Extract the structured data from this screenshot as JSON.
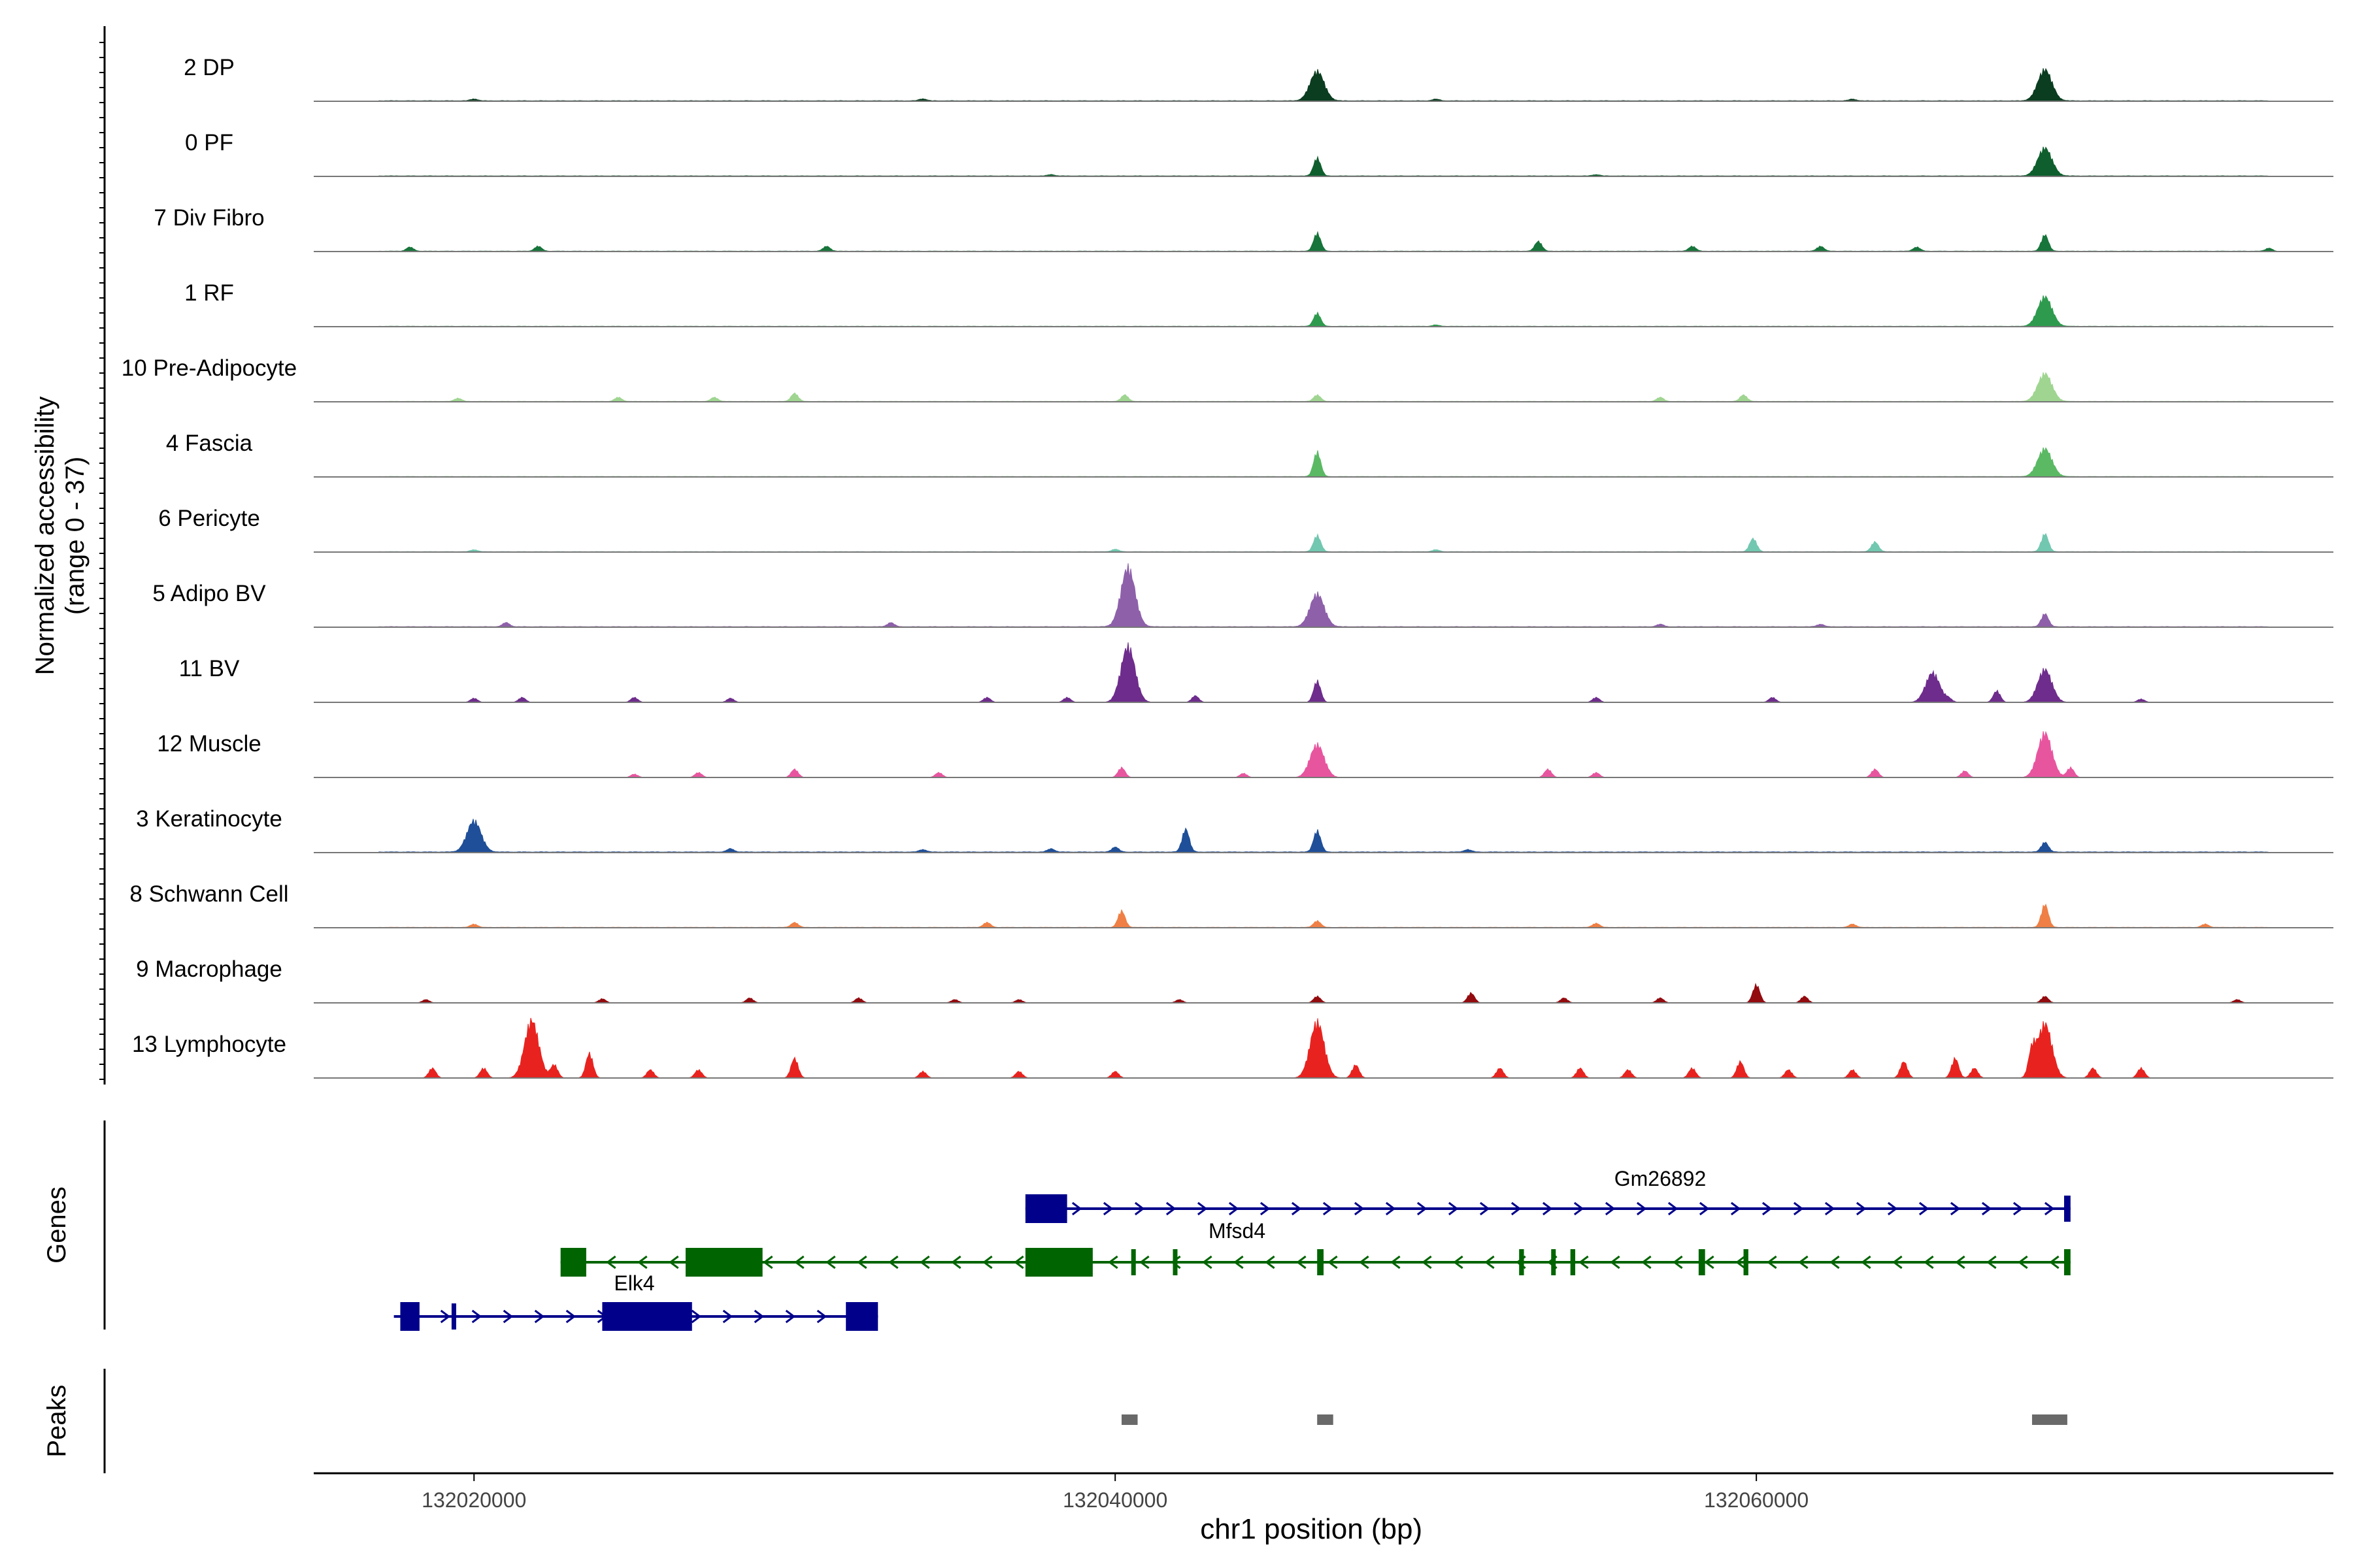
{
  "chart_data": {
    "type": "area",
    "y_axis_label_line1": "Normalized accessibility",
    "y_axis_label_line2": "(range 0 - 37)",
    "ylim": [
      0,
      37
    ],
    "x_axis_label": "chr1 position (bp)",
    "xlim": [
      132015000,
      132078000
    ],
    "x_ticks": [
      {
        "value": 132020000,
        "label": "132020000"
      },
      {
        "value": 132040000,
        "label": "132040000"
      },
      {
        "value": 132060000,
        "label": "132060000"
      }
    ],
    "tracks": [
      {
        "name": "2 DP",
        "color": "#0b3d20",
        "baseline": 0.4,
        "peaks": [
          [
            132046300,
            18
          ],
          [
            132069000,
            19
          ],
          [
            132034000,
            1.2
          ],
          [
            132050000,
            1.0
          ],
          [
            132020000,
            1.1
          ],
          [
            132063000,
            1.0
          ]
        ]
      },
      {
        "name": "0 PF",
        "color": "#0e5f2d",
        "baseline": 0.4,
        "peaks": [
          [
            132046300,
            11
          ],
          [
            132069000,
            17
          ],
          [
            132038000,
            0.8
          ],
          [
            132055000,
            0.8
          ]
        ]
      },
      {
        "name": "7 Div Fibro",
        "color": "#17743a",
        "baseline": 0.3,
        "peaks": [
          [
            132046300,
            11
          ],
          [
            132069000,
            10
          ],
          [
            132053200,
            6
          ],
          [
            132022000,
            3
          ],
          [
            132018000,
            2.5
          ],
          [
            132031000,
            3
          ],
          [
            132058000,
            3
          ],
          [
            132062000,
            3
          ],
          [
            132065000,
            2.5
          ],
          [
            132076000,
            2
          ]
        ]
      },
      {
        "name": "1 RF",
        "color": "#2e9a4e",
        "baseline": 0.3,
        "peaks": [
          [
            132046300,
            8
          ],
          [
            132069000,
            18
          ],
          [
            132050000,
            0.8
          ]
        ]
      },
      {
        "name": "10 Pre-Adipocyte",
        "color": "#9fd591",
        "baseline": 0.3,
        "peaks": [
          [
            132069000,
            17
          ],
          [
            132040300,
            4
          ],
          [
            132046300,
            4
          ],
          [
            132030000,
            5
          ],
          [
            132059600,
            4
          ],
          [
            132024500,
            2.5
          ],
          [
            132027500,
            2.5
          ],
          [
            132019500,
            2
          ],
          [
            132057000,
            2.5
          ],
          [
            132077000,
            2
          ]
        ]
      },
      {
        "name": "4 Fascia",
        "color": "#5bb964",
        "baseline": 0.3,
        "peaks": [
          [
            132046300,
            15
          ],
          [
            132069000,
            17
          ]
        ]
      },
      {
        "name": "6 Pericyte",
        "color": "#72c7b0",
        "baseline": 0.3,
        "peaks": [
          [
            132046300,
            10
          ],
          [
            132069000,
            11
          ],
          [
            132059900,
            8
          ],
          [
            132063700,
            6
          ],
          [
            132040000,
            1.5
          ],
          [
            132050000,
            1.2
          ],
          [
            132020000,
            1.2
          ]
        ]
      },
      {
        "name": "5 Adipo BV",
        "color": "#8e60aa",
        "baseline": 0.4,
        "peaks": [
          [
            132040400,
            36
          ],
          [
            132046300,
            20
          ],
          [
            132069000,
            8
          ],
          [
            132033000,
            2.5
          ],
          [
            132021000,
            2.5
          ],
          [
            132062000,
            1.5
          ],
          [
            132057000,
            1.5
          ]
        ]
      },
      {
        "name": "11 BV",
        "color": "#6e2c8c",
        "baseline": 0,
        "peaks": [
          [
            132040400,
            34
          ],
          [
            132046300,
            13
          ],
          [
            132065500,
            18
          ],
          [
            132069000,
            20
          ],
          [
            132067500,
            7
          ],
          [
            132042500,
            4
          ],
          [
            132038500,
            3
          ],
          [
            132036000,
            3
          ],
          [
            132025000,
            3
          ],
          [
            132021500,
            3
          ],
          [
            132020000,
            2.5
          ],
          [
            132028000,
            2.5
          ],
          [
            132055000,
            3
          ],
          [
            132060500,
            3
          ],
          [
            132066000,
            2
          ],
          [
            132072000,
            2
          ]
        ]
      },
      {
        "name": "12 Muscle",
        "color": "#e8559f",
        "baseline": 0,
        "peaks": [
          [
            132046300,
            20
          ],
          [
            132069000,
            27
          ],
          [
            132040200,
            6
          ],
          [
            132030000,
            5
          ],
          [
            132027000,
            3
          ],
          [
            132025000,
            2
          ],
          [
            132034500,
            3
          ],
          [
            132044000,
            2.5
          ],
          [
            132053500,
            5
          ],
          [
            132055000,
            3
          ],
          [
            132063700,
            5
          ],
          [
            132066500,
            4
          ],
          [
            132069800,
            6
          ]
        ]
      },
      {
        "name": "3 Keratinocyte",
        "color": "#1f4f98",
        "baseline": 0.5,
        "peaks": [
          [
            132020000,
            19
          ],
          [
            132042200,
            14
          ],
          [
            132046300,
            13
          ],
          [
            132069000,
            6
          ],
          [
            132040000,
            3
          ],
          [
            132038000,
            2
          ],
          [
            132028000,
            2
          ],
          [
            132051000,
            1.5
          ],
          [
            132034000,
            1.5
          ]
        ]
      },
      {
        "name": "8 Schwann Cell",
        "color": "#ef7f45",
        "baseline": 0.3,
        "peaks": [
          [
            132040200,
            10
          ],
          [
            132046300,
            4
          ],
          [
            132069000,
            14
          ],
          [
            132036000,
            3
          ],
          [
            132030000,
            3
          ],
          [
            132055000,
            2.5
          ],
          [
            132020000,
            2
          ],
          [
            132063000,
            2
          ],
          [
            132074000,
            2
          ]
        ]
      },
      {
        "name": "9 Macrophage",
        "color": "#930b0f",
        "baseline": 0,
        "peaks": [
          [
            132060000,
            11
          ],
          [
            132051100,
            6
          ],
          [
            132046300,
            4
          ],
          [
            132032000,
            3
          ],
          [
            132028600,
            3
          ],
          [
            132054000,
            3
          ],
          [
            132057000,
            3
          ],
          [
            132061500,
            4
          ],
          [
            132069000,
            4
          ],
          [
            132037000,
            2
          ],
          [
            132024000,
            2.5
          ],
          [
            132018500,
            2
          ],
          [
            132035000,
            2
          ],
          [
            132042000,
            2
          ],
          [
            132075000,
            2
          ]
        ]
      },
      {
        "name": "13 Lymphocyte",
        "color": "#e8231f",
        "baseline": 0,
        "peaks": [
          [
            132021800,
            35
          ],
          [
            132023600,
            15
          ],
          [
            132022500,
            8
          ],
          [
            132046300,
            34
          ],
          [
            132047500,
            8
          ],
          [
            132069000,
            33
          ],
          [
            132068600,
            15
          ],
          [
            132070500,
            6
          ],
          [
            132030000,
            12
          ],
          [
            132066200,
            12
          ],
          [
            132059500,
            10
          ],
          [
            132064600,
            10
          ],
          [
            132018700,
            6
          ],
          [
            132020300,
            6
          ],
          [
            132025500,
            5
          ],
          [
            132027000,
            5
          ],
          [
            132034000,
            4
          ],
          [
            132037000,
            4
          ],
          [
            132040000,
            4
          ],
          [
            132052000,
            6
          ],
          [
            132054500,
            6
          ],
          [
            132056000,
            5
          ],
          [
            132058000,
            6
          ],
          [
            132061000,
            5
          ],
          [
            132063000,
            5
          ],
          [
            132066800,
            6
          ],
          [
            132072000,
            6
          ]
        ]
      }
    ],
    "genes_label": "Genes",
    "genes": [
      {
        "name": "Gm26892",
        "strand": "+",
        "color": "#00008b",
        "start": 132037200,
        "end": 132069800,
        "exons": [
          [
            132037200,
            132038500
          ],
          [
            132069600,
            132069800
          ]
        ]
      },
      {
        "name": "Mfsd4",
        "strand": "-",
        "color": "#006400",
        "start": 132022700,
        "end": 132069800,
        "exons": [
          [
            132022700,
            132023500
          ],
          [
            132026600,
            132029000
          ],
          [
            132037200,
            132039300
          ],
          [
            132040500,
            132040600
          ],
          [
            132041800,
            132041900
          ],
          [
            132046300,
            132046500
          ],
          [
            132052600,
            132052750
          ],
          [
            132053600,
            132053700
          ],
          [
            132054200,
            132054350
          ],
          [
            132058200,
            132058400
          ],
          [
            132059600,
            132059750
          ],
          [
            132069600,
            132069800
          ]
        ]
      },
      {
        "name": "Elk4",
        "strand": "+",
        "color": "#00008b",
        "start": 132017500,
        "end": 132032600,
        "exons": [
          [
            132017700,
            132018300
          ],
          [
            132019300,
            132019400
          ],
          [
            132024000,
            132026800
          ],
          [
            132031600,
            132032600
          ]
        ]
      }
    ],
    "peaks_label": "Peaks",
    "peak_regions": [
      [
        132040200,
        132040700
      ],
      [
        132046300,
        132046800
      ],
      [
        132068600,
        132069700
      ]
    ],
    "peak_color": "#696969"
  }
}
